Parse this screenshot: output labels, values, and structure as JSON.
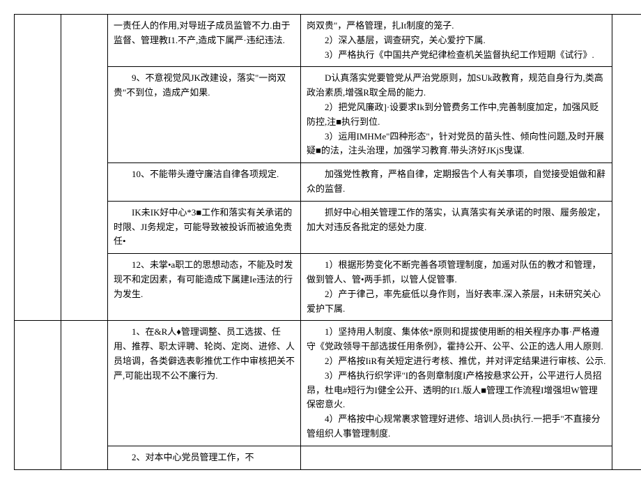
{
  "rows": [
    {
      "c3": "一责任人的作用,对导班子成员监管不力.由于监督、管理教I1.不产,造成下属严·违纪违法.",
      "c4": "岗双贵\"，严格管理，扎It制度的笼子.\n　　2）深入基层，调查研究，关心爱拧下属.\n　　3）严格执行《中国共产党纪律检查机关监督执纪工作短期《试行》."
    },
    {
      "c3": "　　9、不意视觉风JK改建设，落实\"一岗双贵\"不到位，造成产如果.",
      "c4": "　　D认真落实党要管党从严治党原则，加SUk政教育，规范自身行为,类高政治素质,增强R取全局的能力.\n　　2）把党风廉政]·设要求Ik到分管费务工作中,完善制度加定，加强风贬防控,注■执行到位.\n　　3）运用IMHMe\"四种形态\"，针对党员的苗头性、倾向性问题,及时开展疑■的法，注头治理，加强学习教育.带头济好JKjS曳谋."
    },
    {
      "c3": "　　10、不能带头遵守廉洁自律各项规定.",
      "c4": "　　加强党性教育，严格自律，定期报告个人有关事项，自觉接受姐做和辭众的监督."
    },
    {
      "c3": "　　IK未IK好中心*3■工作和落实有关承诺的时限、JI务规定，可能导致被投诉而被追免责任•",
      "c4": "　　抓好中心相关管理工作的落实，认真落实有关承诺的时限、履务般定，加大对违反各批定的惩处力度."
    },
    {
      "c3": "　　12、未掌•a职工的思想动态，不能及时发现不和定因素，有可能造成下属建Ie违法的行为发生.",
      "c4": "　　1）根据形势变化不断完善各项管理制度，加遥对队伍的教才和管理，做到管人、管•两手抓，以管人促管事.\n　　2）产于律己，率先疵低以身作则，当好表率.深入茶层，H未研究关心爱护下属."
    },
    {
      "c3": "　　1、在&R人♦管理调整、员工选拔、任用、推荐、职太评聘、轮岗、定岗、进修、人员培调，各类僻选表彰推优工作中审核把关不严,可能出现不公不廉行为.",
      "c4": "　　1）坚持用人制度、集体依*原则和提拔使用断的相关程序办事·严格遵守《党政领导干部选拔任用条例》，霍持公开、公平、公正的选人用人原则.\n　　2）严格按IiR有关短定进行考核、推优，并对评定结果进行审核、公示.\n　　3）严格执行织学评\"I的各则章制度I产格按悬求公开，公平进行人员招昂，杜电#短行为I健全公开、透明的If1.版人■管理工作流程I增强坦W管理保密意火.\n　　4）严格按中心规常裹求管理好进修、培训人员t执行.一把手\"不直接分管组织人事管理制度."
    },
    {
      "c3": "　　2、对本中心党员管理工作，不",
      "c4": ""
    }
  ]
}
